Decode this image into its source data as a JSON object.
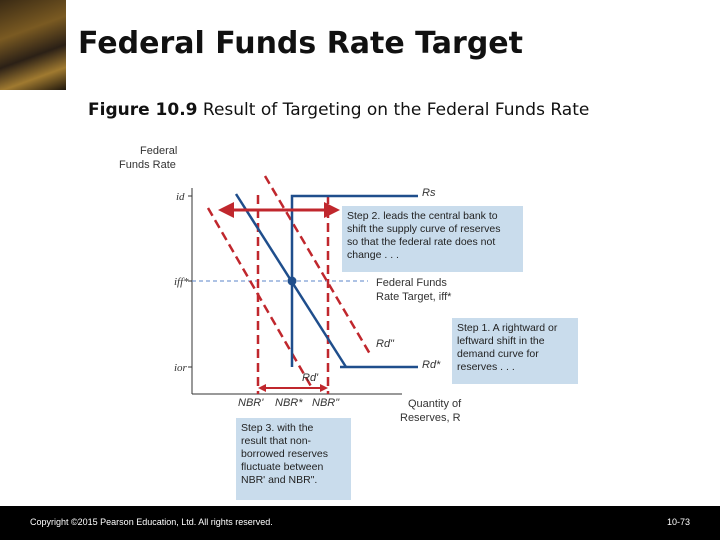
{
  "slide": {
    "title": "Federal Funds Rate Target",
    "figure_number": "Figure 10.9",
    "figure_caption": " Result of Targeting on the Federal Funds Rate"
  },
  "axes": {
    "y_label_line1": "Federal",
    "y_label_line2": "Funds Rate",
    "x_label_line1": "Quantity of",
    "x_label_line2": "Reserves, R",
    "tick_id": "id",
    "tick_iff": "iff*",
    "tick_ior": "ior",
    "tick_nbr1": "NBR'",
    "tick_nbr_star": "NBR*",
    "tick_nbr2": "NBR\""
  },
  "curve_labels": {
    "supply": "Rs",
    "demand_right": "Rd\"",
    "demand_center": "Rd*",
    "demand_left": "Rd'",
    "target_line1": "Federal Funds",
    "target_line2": "Rate Target, iff*"
  },
  "boxes": {
    "step2": [
      "Step 2. leads the central bank to",
      "shift the supply curve of reserves",
      "so that the federal rate does not",
      "change . . ."
    ],
    "step1": [
      "Step 1. A rightward or",
      "leftward shift in the",
      "demand curve for",
      "reserves . . ."
    ],
    "step3": [
      "Step 3. with the",
      "result that non-",
      "borrowed reserves",
      "fluctuate between",
      "NBR' and NBR\"."
    ]
  },
  "colors": {
    "blue_curve": "#1f4e8c",
    "red_dashed": "#c0272d",
    "box_fill": "#c9dcec",
    "target_dashed": "#5b86c9"
  },
  "footer": {
    "copyright": "Copyright ©2015 Pearson Education, Ltd. All rights reserved.",
    "page": "10-73"
  }
}
